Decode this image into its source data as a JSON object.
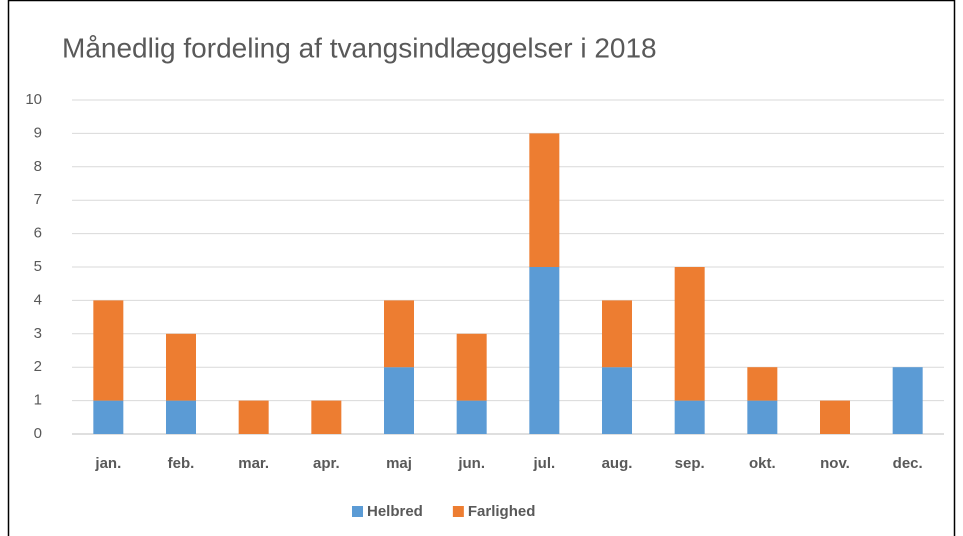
{
  "chart_data": {
    "type": "stacked_bar",
    "title": "Månedlig fordeling af tvangsindlæggelser i 2018",
    "categories": [
      "jan.",
      "feb.",
      "mar.",
      "apr.",
      "maj",
      "jun.",
      "jul.",
      "aug.",
      "sep.",
      "okt.",
      "nov.",
      "dec."
    ],
    "series": [
      {
        "name": "Helbred",
        "color": "#5b9bd5",
        "values": [
          1,
          1,
          0,
          0,
          2,
          1,
          5,
          2,
          1,
          1,
          0,
          2
        ]
      },
      {
        "name": "Farlighed",
        "color": "#ed7d31",
        "values": [
          3,
          2,
          1,
          1,
          2,
          2,
          4,
          2,
          4,
          1,
          1,
          0
        ]
      }
    ],
    "ylim": [
      0,
      10
    ],
    "yticks": [
      0,
      1,
      2,
      3,
      4,
      5,
      6,
      7,
      8,
      9,
      10
    ],
    "grid": true,
    "legend": "bottom"
  }
}
